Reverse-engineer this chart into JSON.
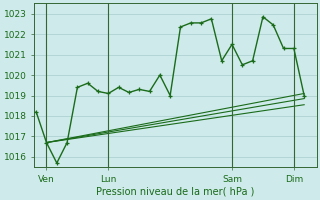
{
  "background_color": "#ceeaea",
  "grid_color": "#aacccc",
  "line_color": "#1a6b1a",
  "title": "Pression niveau de la mer( hPa )",
  "ylabel_min": 1016,
  "ylabel_max": 1023,
  "x_ticks_labels": [
    "Ven",
    "Lun",
    "Sam",
    "Dim"
  ],
  "x_ticks_pos": [
    1,
    7,
    19,
    25
  ],
  "series1_x": [
    0,
    1,
    2,
    3,
    4,
    5,
    6,
    7,
    8,
    9,
    10,
    11,
    12,
    13,
    14,
    15,
    16,
    17,
    18,
    19,
    20,
    21,
    22,
    23,
    24,
    25,
    26
  ],
  "series1_y": [
    1018.2,
    1016.7,
    1015.7,
    1016.7,
    1019.4,
    1019.6,
    1019.2,
    1019.1,
    1019.4,
    1019.15,
    1019.3,
    1019.2,
    1020.0,
    1019.0,
    1022.35,
    1022.55,
    1022.55,
    1022.75,
    1020.7,
    1021.5,
    1020.5,
    1020.7,
    1022.85,
    1022.45,
    1021.3,
    1021.3,
    1019.0
  ],
  "series2_x": [
    1,
    26
  ],
  "series2_y": [
    1016.7,
    1018.55
  ],
  "series3_x": [
    1,
    26
  ],
  "series3_y": [
    1016.7,
    1018.85
  ],
  "series4_x": [
    1,
    26
  ],
  "series4_y": [
    1016.7,
    1019.1
  ],
  "vlines_x": [
    1,
    7,
    19,
    25
  ],
  "xlim": [
    -0.2,
    27.2
  ],
  "ylim": [
    1015.5,
    1023.5
  ]
}
